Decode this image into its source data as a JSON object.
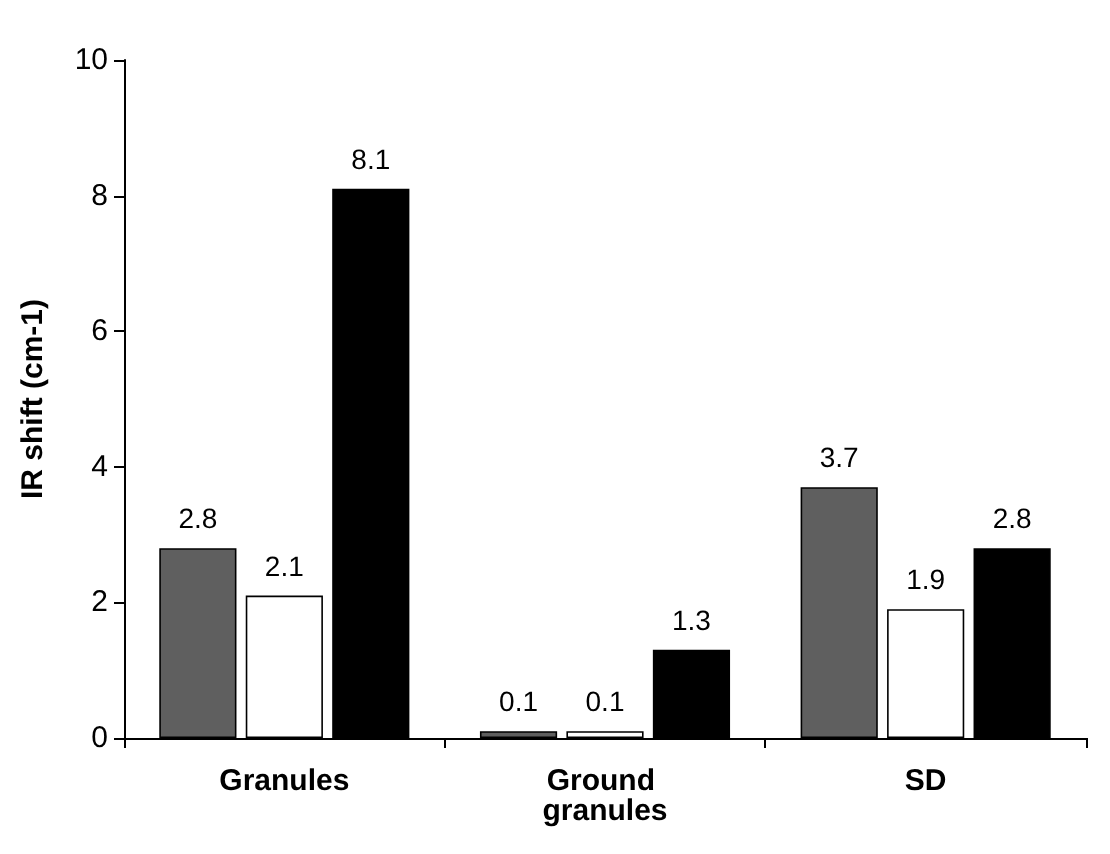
{
  "chart_data": {
    "type": "bar",
    "ylabel": "IR shift (cm-1)",
    "categories": [
      "Granules",
      "Ground granules",
      "SD"
    ],
    "series": [
      {
        "color": "#5f5f5f",
        "values": [
          2.8,
          0.1,
          3.7
        ]
      },
      {
        "color": "#ffffff",
        "values": [
          2.1,
          0.1,
          1.9
        ]
      },
      {
        "color": "#000000",
        "values": [
          8.1,
          1.3,
          2.8
        ]
      }
    ],
    "ylim": [
      0,
      10
    ],
    "yticks": [
      0,
      2,
      4,
      6,
      8,
      10
    ],
    "grid": false,
    "data_labels": true
  }
}
